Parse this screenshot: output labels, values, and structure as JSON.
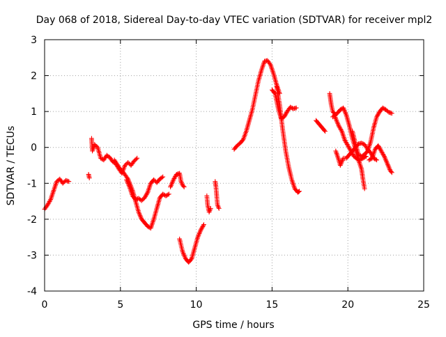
{
  "chart_data": {
    "type": "scatter",
    "title": "Day 068 of 2018, Sidereal Day-to-day VTEC variation (SDTVAR) for receiver mpl2",
    "xlabel": "GPS time / hours",
    "ylabel": "SDTVAR / TECUs",
    "xlim": [
      0,
      25
    ],
    "ylim": [
      -4,
      3
    ],
    "xticks": [
      0,
      5,
      10,
      15,
      20,
      25
    ],
    "yticks": [
      -4,
      -3,
      -2,
      -1,
      0,
      1,
      2,
      3
    ],
    "xtick_labels": [
      "0",
      "5",
      "10",
      "15",
      "20",
      "25"
    ],
    "ytick_labels": [
      "-4",
      "-3",
      "-2",
      "-1",
      "0",
      "1",
      "2",
      "3"
    ],
    "grid": true,
    "marker": "+",
    "series": [
      {
        "name": "SDTVAR",
        "color": "#ff0000",
        "segments": [
          [
            [
              0.0,
              -1.72
            ],
            [
              0.2,
              -1.6
            ],
            [
              0.4,
              -1.45
            ],
            [
              0.6,
              -1.2
            ],
            [
              0.8,
              -0.95
            ],
            [
              1.0,
              -0.88
            ],
            [
              1.2,
              -1.0
            ],
            [
              1.4,
              -0.92
            ],
            [
              1.6,
              -0.95
            ]
          ],
          [
            [
              2.9,
              -0.75
            ],
            [
              2.95,
              -0.85
            ]
          ],
          [
            [
              3.1,
              0.25
            ],
            [
              3.15,
              -0.1
            ],
            [
              3.3,
              0.08
            ],
            [
              3.5,
              0.0
            ],
            [
              3.7,
              -0.3
            ],
            [
              3.9,
              -0.35
            ],
            [
              4.1,
              -0.22
            ],
            [
              4.3,
              -0.28
            ],
            [
              4.5,
              -0.4
            ],
            [
              4.7,
              -0.45
            ],
            [
              4.9,
              -0.6
            ],
            [
              5.1,
              -0.72
            ],
            [
              5.3,
              -0.5
            ],
            [
              5.5,
              -0.42
            ],
            [
              5.7,
              -0.5
            ],
            [
              5.9,
              -0.38
            ],
            [
              6.1,
              -0.3
            ]
          ],
          [
            [
              4.6,
              -0.35
            ],
            [
              4.9,
              -0.55
            ],
            [
              5.2,
              -0.7
            ],
            [
              5.5,
              -0.88
            ],
            [
              5.8,
              -1.2
            ],
            [
              6.0,
              -1.5
            ],
            [
              6.2,
              -1.8
            ],
            [
              6.4,
              -2.0
            ],
            [
              6.6,
              -2.1
            ],
            [
              6.8,
              -2.2
            ],
            [
              7.0,
              -2.25
            ],
            [
              7.2,
              -2.0
            ],
            [
              7.4,
              -1.7
            ],
            [
              7.6,
              -1.4
            ],
            [
              7.8,
              -1.3
            ],
            [
              8.0,
              -1.35
            ],
            [
              8.2,
              -1.3
            ]
          ],
          [
            [
              5.4,
              -0.9
            ],
            [
              5.6,
              -1.1
            ],
            [
              5.8,
              -1.35
            ],
            [
              6.0,
              -1.45
            ],
            [
              6.2,
              -1.42
            ],
            [
              6.4,
              -1.48
            ],
            [
              6.6,
              -1.4
            ],
            [
              6.8,
              -1.25
            ],
            [
              7.0,
              -1.0
            ],
            [
              7.2,
              -0.9
            ],
            [
              7.4,
              -0.98
            ],
            [
              7.6,
              -0.88
            ],
            [
              7.8,
              -0.82
            ]
          ],
          [
            [
              8.3,
              -1.1
            ],
            [
              8.5,
              -0.9
            ],
            [
              8.7,
              -0.75
            ],
            [
              8.9,
              -0.72
            ],
            [
              9.0,
              -0.95
            ],
            [
              9.1,
              -1.05
            ],
            [
              9.2,
              -1.1
            ]
          ],
          [
            [
              8.9,
              -2.55
            ],
            [
              9.1,
              -2.9
            ],
            [
              9.3,
              -3.1
            ],
            [
              9.5,
              -3.2
            ],
            [
              9.7,
              -3.1
            ],
            [
              9.9,
              -2.8
            ],
            [
              10.1,
              -2.5
            ],
            [
              10.3,
              -2.3
            ],
            [
              10.5,
              -2.15
            ]
          ],
          [
            [
              10.7,
              -1.35
            ],
            [
              10.75,
              -1.6
            ],
            [
              10.85,
              -1.8
            ],
            [
              10.95,
              -1.7
            ]
          ],
          [
            [
              11.25,
              -0.95
            ],
            [
              11.3,
              -1.1
            ],
            [
              11.4,
              -1.6
            ],
            [
              11.5,
              -1.7
            ]
          ],
          [
            [
              12.5,
              -0.05
            ],
            [
              12.7,
              0.05
            ],
            [
              12.9,
              0.12
            ],
            [
              13.1,
              0.22
            ],
            [
              13.3,
              0.45
            ],
            [
              13.5,
              0.75
            ],
            [
              13.7,
              1.05
            ],
            [
              13.9,
              1.45
            ],
            [
              14.1,
              1.85
            ],
            [
              14.3,
              2.15
            ],
            [
              14.5,
              2.4
            ],
            [
              14.7,
              2.42
            ],
            [
              14.9,
              2.3
            ],
            [
              15.1,
              2.05
            ],
            [
              15.3,
              1.75
            ],
            [
              15.5,
              1.5
            ]
          ],
          [
            [
              15.0,
              1.6
            ],
            [
              15.2,
              1.5
            ],
            [
              15.4,
              1.1
            ],
            [
              15.6,
              0.8
            ],
            [
              15.8,
              0.85
            ],
            [
              16.0,
              1.0
            ],
            [
              16.2,
              1.12
            ],
            [
              16.4,
              1.08
            ],
            [
              16.6,
              1.1
            ]
          ],
          [
            [
              15.3,
              1.7
            ],
            [
              15.5,
              1.2
            ],
            [
              15.7,
              0.5
            ],
            [
              15.9,
              -0.1
            ],
            [
              16.1,
              -0.55
            ],
            [
              16.3,
              -0.9
            ],
            [
              16.5,
              -1.15
            ],
            [
              16.7,
              -1.25
            ],
            [
              16.8,
              -1.22
            ]
          ],
          [
            [
              17.9,
              0.75
            ],
            [
              18.1,
              0.65
            ],
            [
              18.3,
              0.55
            ],
            [
              18.5,
              0.45
            ]
          ],
          [
            [
              18.8,
              1.5
            ],
            [
              18.9,
              1.2
            ],
            [
              19.0,
              1.0
            ],
            [
              19.1,
              0.95
            ],
            [
              19.2,
              0.8
            ],
            [
              19.4,
              0.6
            ],
            [
              19.6,
              0.45
            ],
            [
              19.8,
              0.2
            ],
            [
              20.0,
              0.05
            ],
            [
              20.2,
              -0.1
            ],
            [
              20.4,
              -0.25
            ],
            [
              20.6,
              -0.32
            ],
            [
              20.8,
              -0.35
            ],
            [
              21.0,
              -0.3
            ],
            [
              21.2,
              -0.25
            ]
          ],
          [
            [
              19.2,
              -0.1
            ],
            [
              19.4,
              -0.35
            ],
            [
              19.5,
              -0.5
            ],
            [
              19.7,
              -0.3
            ],
            [
              19.9,
              -0.3
            ],
            [
              20.1,
              -0.2
            ],
            [
              20.3,
              -0.1
            ],
            [
              20.5,
              0.0
            ],
            [
              20.7,
              0.1
            ],
            [
              20.9,
              0.12
            ],
            [
              21.1,
              0.08
            ],
            [
              21.3,
              -0.05
            ],
            [
              21.5,
              -0.15
            ],
            [
              21.7,
              -0.3
            ],
            [
              21.9,
              -0.35
            ]
          ],
          [
            [
              19.0,
              0.85
            ],
            [
              19.3,
              0.95
            ],
            [
              19.5,
              1.05
            ],
            [
              19.7,
              1.1
            ],
            [
              19.9,
              0.9
            ],
            [
              20.1,
              0.6
            ],
            [
              20.3,
              0.25
            ],
            [
              20.5,
              -0.05
            ],
            [
              20.7,
              -0.35
            ],
            [
              20.9,
              -0.6
            ],
            [
              21.0,
              -0.9
            ],
            [
              21.1,
              -1.15
            ]
          ],
          [
            [
              20.3,
              0.45
            ],
            [
              20.5,
              0.1
            ],
            [
              20.7,
              -0.2
            ],
            [
              20.9,
              -0.25
            ],
            [
              21.1,
              -0.2
            ],
            [
              21.3,
              -0.1
            ],
            [
              21.5,
              0.15
            ],
            [
              21.7,
              0.55
            ],
            [
              21.9,
              0.85
            ],
            [
              22.1,
              1.0
            ],
            [
              22.3,
              1.1
            ],
            [
              22.5,
              1.05
            ],
            [
              22.7,
              0.98
            ],
            [
              22.9,
              0.95
            ]
          ],
          [
            [
              21.4,
              -0.35
            ],
            [
              21.6,
              -0.3
            ],
            [
              21.8,
              -0.05
            ],
            [
              22.0,
              0.05
            ],
            [
              22.2,
              -0.1
            ],
            [
              22.4,
              -0.25
            ],
            [
              22.6,
              -0.45
            ],
            [
              22.8,
              -0.65
            ],
            [
              22.9,
              -0.7
            ]
          ]
        ]
      }
    ]
  }
}
